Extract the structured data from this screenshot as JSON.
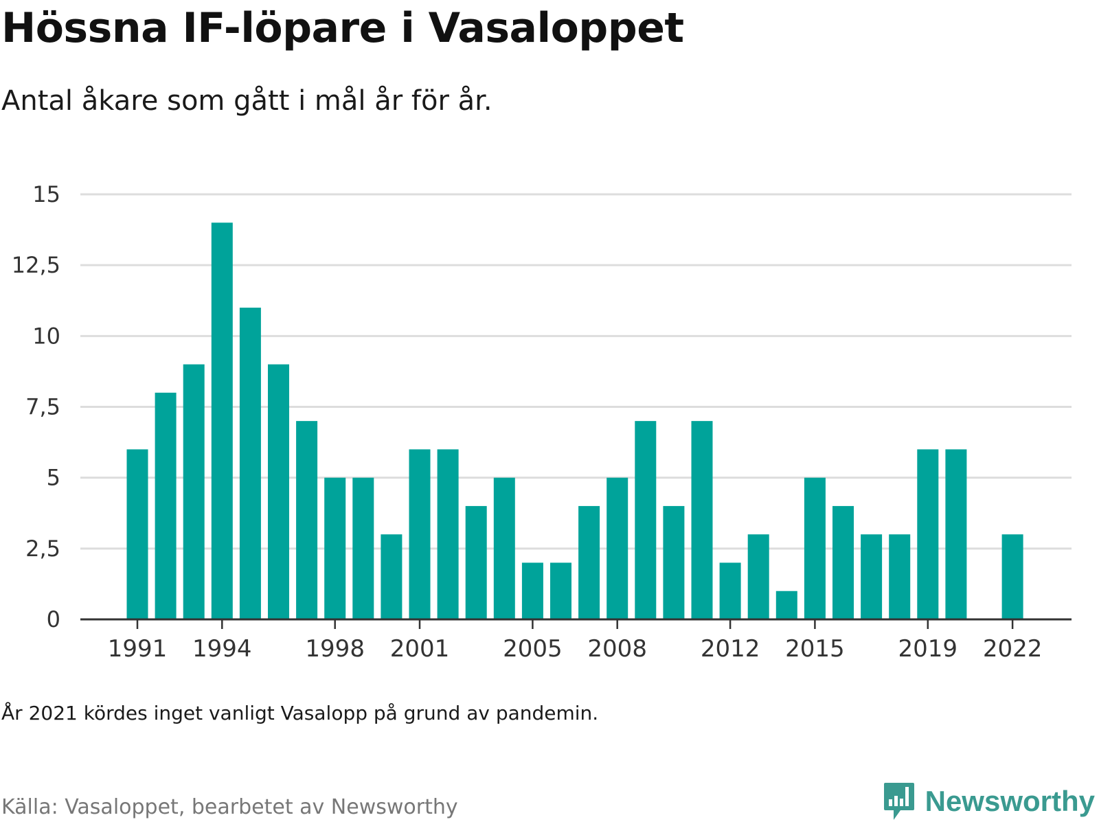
{
  "header": {
    "title": "Hössna IF-löpare i Vasaloppet",
    "subtitle": "Antal åkare som gått i mål år för år."
  },
  "footer": {
    "note": "År 2021 kördes inget vanligt Vasalopp på grund av pandemin.",
    "source": "Källa: Vasaloppet, bearbetet av Newsworthy",
    "brand": "Newsworthy",
    "brand_icon": "newsworthy-logo-icon"
  },
  "colors": {
    "bar": "#00a39a",
    "grid": "#dddddd",
    "axis": "#333333",
    "brand": "#3a9a90"
  },
  "chart_data": {
    "type": "bar",
    "title": "Hössna IF-löpare i Vasaloppet",
    "subtitle": "Antal åkare som gått i mål år för år.",
    "xlabel": "",
    "ylabel": "",
    "ylim": [
      0,
      15
    ],
    "yticks": [
      0,
      2.5,
      5,
      7.5,
      10,
      12.5,
      15
    ],
    "ytick_labels": [
      "0",
      "2,5",
      "5",
      "7,5",
      "10",
      "12,5",
      "15"
    ],
    "xtick_labels": [
      "1991",
      "1994",
      "1998",
      "2001",
      "2005",
      "2008",
      "2012",
      "2015",
      "2019",
      "2022"
    ],
    "grid": true,
    "categories": [
      1991,
      1992,
      1993,
      1994,
      1995,
      1996,
      1997,
      1998,
      1999,
      2000,
      2001,
      2002,
      2003,
      2004,
      2005,
      2006,
      2007,
      2008,
      2009,
      2010,
      2011,
      2012,
      2013,
      2014,
      2015,
      2016,
      2017,
      2018,
      2019,
      2020,
      2021,
      2022
    ],
    "values": [
      6,
      8,
      9,
      14,
      11,
      9,
      7,
      5,
      5,
      3,
      6,
      6,
      4,
      5,
      2,
      2,
      4,
      5,
      7,
      4,
      7,
      2,
      3,
      1,
      5,
      4,
      3,
      3,
      6,
      6,
      null,
      3
    ]
  }
}
